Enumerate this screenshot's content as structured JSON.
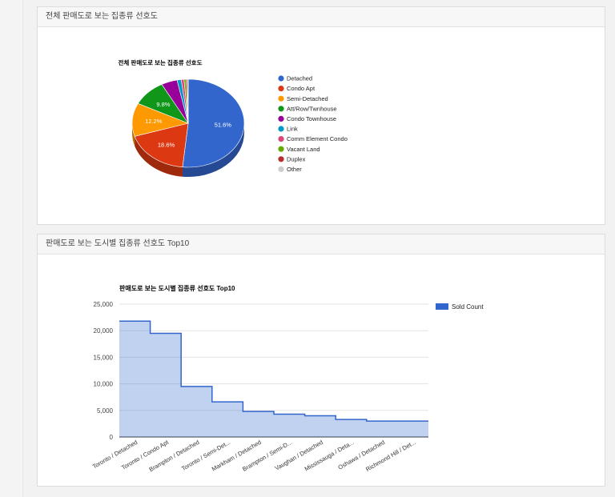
{
  "panels": {
    "pie_panel_title": "전체 판매도로 보는 집종류 선호도",
    "area_panel_title": "판매도로 보는 도시별 집종류 선호도 Top10"
  },
  "chart_data": [
    {
      "type": "pie",
      "title": "전체 판매도로 보는 집종류 선호도",
      "legend_position": "right",
      "slices": [
        {
          "label": "Detached",
          "value": 51.6,
          "color": "#3366cc",
          "display": "51.6%"
        },
        {
          "label": "Condo Apt",
          "value": 18.6,
          "color": "#dc3912",
          "display": "18.6%"
        },
        {
          "label": "Semi-Detached",
          "value": 12.2,
          "color": "#ff9900",
          "display": "12.2%"
        },
        {
          "label": "Att/Row/Twnhouse",
          "value": 9.8,
          "color": "#109618",
          "display": "9.8%"
        },
        {
          "label": "Condo Townhouse",
          "value": 4.6,
          "color": "#990099",
          "display": ""
        },
        {
          "label": "Link",
          "value": 1.2,
          "color": "#0099c6",
          "display": ""
        },
        {
          "label": "Comm Element Condo",
          "value": 0.8,
          "color": "#dd4477",
          "display": ""
        },
        {
          "label": "Vacant Land",
          "value": 0.6,
          "color": "#66aa00",
          "display": ""
        },
        {
          "label": "Duplex",
          "value": 0.4,
          "color": "#b82e2e",
          "display": ""
        },
        {
          "label": "Other",
          "value": 0.2,
          "color": "#cccccc",
          "display": ""
        }
      ]
    },
    {
      "type": "area",
      "title": "판매도로 보는 도시별 집종류 선호도 Top10",
      "legend_position": "right",
      "series": [
        {
          "name": "Sold Count",
          "color": "#3366cc",
          "values": [
            21800,
            19500,
            9500,
            6600,
            4800,
            4300,
            4000,
            3300,
            3000,
            3000
          ]
        }
      ],
      "categories": [
        "Toronto / Detached",
        "Toronto / Condo Apt",
        "Brampton / Detached",
        "Toronto / Semi-Det...",
        "Markham / Detached",
        "Brampton / Semi-D...",
        "Vaughan / Detached",
        "Mississauga / Deta...",
        "Oshawa / Detached",
        "Richmond Hill / Det..."
      ],
      "ylim": [
        0,
        25000
      ],
      "yticks": [
        0,
        5000,
        10000,
        15000,
        20000,
        25000
      ],
      "ytick_labels": [
        "0",
        "5,000",
        "10,000",
        "15,000",
        "20,000",
        "25,000"
      ],
      "grid": true
    }
  ]
}
